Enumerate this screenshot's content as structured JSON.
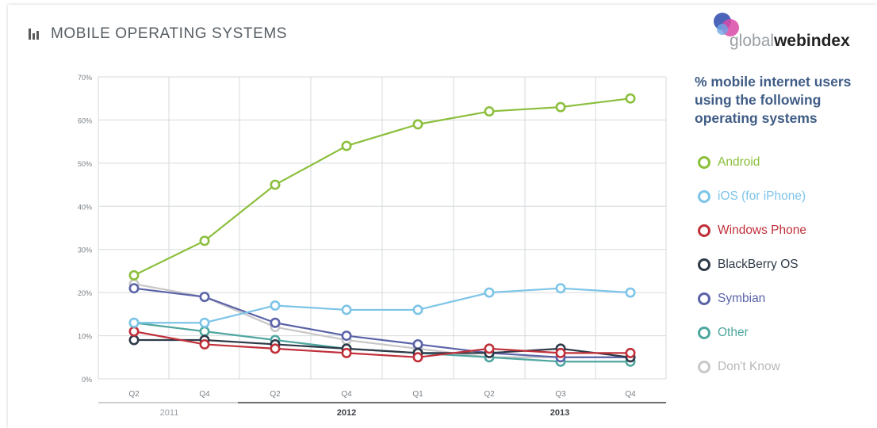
{
  "header": {
    "title": "MOBILE OPERATING SYSTEMS",
    "icon": "bar-chart-icon"
  },
  "logo": {
    "light": "global",
    "bold1": "web",
    "bold2": "index"
  },
  "legend_heading": "% mobile internet users using the following operating systems",
  "colors": {
    "bg": "#ffffff",
    "grid": "#cfd4d8",
    "title": "#555d63",
    "heading": "#3f5c86"
  },
  "chart_data": {
    "type": "line",
    "title": "MOBILE OPERATING SYSTEMS",
    "xlabel": "",
    "ylabel": "",
    "ylim": [
      0,
      70
    ],
    "yticks": [
      "0%",
      "10%",
      "20%",
      "30%",
      "40%",
      "50%",
      "60%",
      "70%"
    ],
    "categories": [
      "Q2",
      "Q4",
      "Q2",
      "Q4",
      "Q1",
      "Q2",
      "Q3",
      "Q4"
    ],
    "years": [
      {
        "label": "2011",
        "start": 0,
        "end": 1
      },
      {
        "label": "2012",
        "start": 2,
        "end": 4
      },
      {
        "label": "2013",
        "start": 5,
        "end": 7
      }
    ],
    "grid": true,
    "legend_position": "right",
    "series": [
      {
        "name": "Android",
        "color": "#8bbf3c",
        "values": [
          24,
          32,
          45,
          54,
          59,
          62,
          63,
          65
        ]
      },
      {
        "name": "iOS (for iPhone)",
        "color": "#7cc4e8",
        "values": [
          13,
          13,
          17,
          16,
          16,
          20,
          21,
          20
        ]
      },
      {
        "name": "Windows Phone",
        "color": "#c0303a",
        "values": [
          11,
          8,
          7,
          6,
          5,
          7,
          6,
          6
        ]
      },
      {
        "name": "BlackBerry OS",
        "color": "#2e3a48",
        "values": [
          9,
          9,
          8,
          7,
          6,
          6,
          7,
          5
        ]
      },
      {
        "name": "Symbian",
        "color": "#5a63a8",
        "values": [
          21,
          19,
          13,
          10,
          8,
          6,
          5,
          5
        ]
      },
      {
        "name": "Other",
        "color": "#4fa7a0",
        "values": [
          13,
          11,
          9,
          7,
          6,
          5,
          4,
          4
        ]
      },
      {
        "name": "Don't Know",
        "color": "#c8c8c8",
        "values": [
          22,
          19,
          12,
          9,
          7,
          5,
          5,
          5
        ]
      }
    ]
  }
}
